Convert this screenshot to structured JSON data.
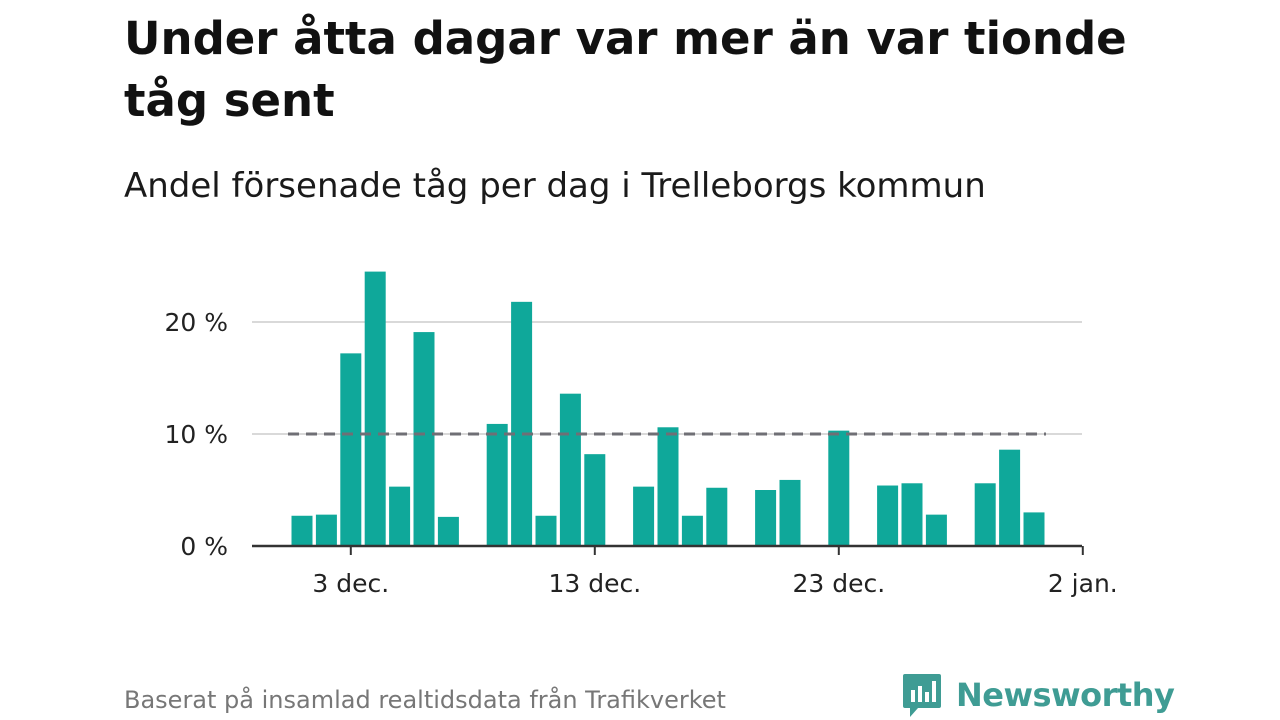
{
  "title": "Under åtta dagar var mer än var tionde tåg sent",
  "subtitle": "Andel försenade tåg per dag i Trelleborgs kommun",
  "footer": "Baserat på insamlad realtidsdata från Trafikverket",
  "brand": {
    "name": "Newsworthy",
    "icon": "newsworthy-logo-icon",
    "color": "#3f9c94"
  },
  "chart_data": {
    "type": "bar",
    "title": "Under åtta dagar var mer än var tionde tåg sent",
    "subtitle": "Andel försenade tåg per dag i Trelleborgs kommun",
    "xlabel": "",
    "ylabel": "",
    "bar_color": "#0fa89a",
    "reference_line": {
      "value": 10,
      "style": "dashed",
      "color": "#6f6f75"
    },
    "ylim": [
      0,
      25
    ],
    "yticks": [
      0,
      10,
      20
    ],
    "ytick_labels": [
      "0 %",
      "10 %",
      "20 %"
    ],
    "xticks": [
      {
        "day": 3,
        "label": "3 dec."
      },
      {
        "day": 13,
        "label": "13 dec."
      },
      {
        "day": 23,
        "label": "23 dec."
      },
      {
        "day": 33,
        "label": "2 jan."
      }
    ],
    "x_unit": "day of December (1 = 1 dec., 32 = 1 jan.)",
    "days": [
      1,
      2,
      3,
      4,
      5,
      6,
      7,
      8,
      9,
      10,
      11,
      12,
      13,
      14,
      15,
      16,
      17,
      18,
      19,
      20,
      21,
      22,
      23,
      24,
      25,
      26,
      27,
      28,
      29,
      30,
      31
    ],
    "values": [
      2.7,
      2.8,
      17.2,
      24.5,
      5.3,
      19.1,
      2.6,
      null,
      10.9,
      21.8,
      2.7,
      13.6,
      8.2,
      null,
      5.3,
      10.6,
      2.7,
      5.2,
      null,
      5.0,
      5.9,
      null,
      10.3,
      null,
      5.4,
      5.6,
      2.8,
      null,
      5.6,
      8.6,
      3.0
    ],
    "grid": true,
    "legend": "none"
  }
}
